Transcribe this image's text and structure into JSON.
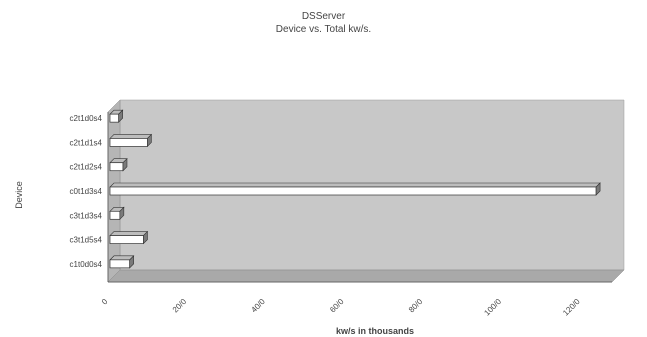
{
  "chart_data": {
    "type": "bar",
    "orientation": "horizontal",
    "title": "DSServer",
    "subtitle": "Device vs. Total kw/s.",
    "xlabel": "kw/s in thousands",
    "ylabel": "Device",
    "categories": [
      "c2t1d0s4",
      "c2t1d1s4",
      "c2t1d2s4",
      "c0t1d3s4",
      "c3t1d3s4",
      "c3t1d5s4",
      "c1t0d0s4"
    ],
    "values": [
      2.2,
      9.5,
      3.3,
      123.5,
      2.5,
      8.5,
      5.0
    ],
    "xlim": [
      0,
      125
    ],
    "xticks": [
      "0",
      "20/0",
      "40/0",
      "60/0",
      "80/0",
      "100/0",
      "120/0"
    ],
    "grid": false,
    "legend": "none",
    "style": "3d",
    "colors": {
      "bar_fill": "#ffffff",
      "bar_side": "#7a7a7a",
      "bar_top": "#bdbdbd",
      "plot_back": "#c8c8c8",
      "plot_floor": "#a9a9a9",
      "axis": "#666666"
    }
  }
}
